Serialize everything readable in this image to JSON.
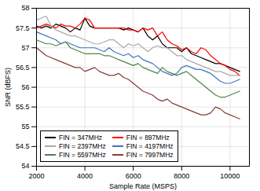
{
  "chart_data": {
    "type": "line",
    "xlabel": "Sample Rate (MSPS)",
    "ylabel": "SNR (dBFS)",
    "xlim": [
      2000,
      10800
    ],
    "ylim": [
      54,
      58
    ],
    "xticks": [
      2000,
      4000,
      6000,
      8000,
      10000
    ],
    "yticks": [
      54,
      54.5,
      55,
      55.5,
      56,
      56.5,
      57,
      57.5,
      58
    ],
    "grid": true,
    "legend": "lower left",
    "x": [
      2000,
      2200,
      2400,
      2600,
      2800,
      3000,
      3200,
      3400,
      3600,
      3800,
      4000,
      4200,
      4400,
      4600,
      4800,
      5000,
      5200,
      5400,
      5600,
      5800,
      6000,
      6200,
      6400,
      6600,
      6800,
      7000,
      7200,
      7400,
      7600,
      7800,
      8000,
      8200,
      8400,
      8600,
      8800,
      9000,
      9200,
      9400,
      9600,
      9800,
      10000,
      10200,
      10400
    ],
    "series": [
      {
        "name": "FIN = 347MHz",
        "color": "#000000",
        "values": [
          57.55,
          57.5,
          57.55,
          57.5,
          57.6,
          57.55,
          57.5,
          57.4,
          57.5,
          57.45,
          57.75,
          57.55,
          57.5,
          57.5,
          57.5,
          57.5,
          57.5,
          57.5,
          57.45,
          57.5,
          57.45,
          57.4,
          57.5,
          57.3,
          57.2,
          57.3,
          57.1,
          57.0,
          57.0,
          57.0,
          56.9,
          57.0,
          56.85,
          56.8,
          56.75,
          56.7,
          56.65,
          56.6,
          56.6,
          56.55,
          56.5,
          56.45,
          56.4
        ]
      },
      {
        "name": "FIN = 897MHz",
        "color": "#ff0000",
        "values": [
          57.5,
          57.55,
          57.6,
          57.55,
          57.5,
          57.6,
          57.55,
          57.55,
          57.5,
          57.6,
          57.75,
          57.7,
          57.5,
          57.5,
          57.5,
          57.5,
          57.5,
          57.5,
          57.5,
          57.45,
          57.45,
          57.4,
          57.5,
          57.45,
          57.5,
          57.3,
          57.4,
          57.2,
          57.1,
          57.05,
          56.95,
          57.0,
          56.9,
          56.85,
          57.0,
          56.95,
          56.8,
          56.7,
          56.6,
          56.55,
          56.45,
          56.4,
          56.3
        ]
      },
      {
        "name": "FIN = 2397MHz",
        "color": "#aaaaaa",
        "values": [
          57.7,
          57.75,
          57.8,
          57.55,
          57.45,
          57.4,
          57.35,
          57.3,
          57.3,
          57.25,
          57.2,
          57.15,
          57.1,
          57.1,
          57.15,
          57.2,
          57.2,
          57.1,
          57.0,
          57.1,
          57.05,
          57.1,
          57.0,
          56.9,
          57.0,
          57.05,
          57.0,
          57.0,
          56.9,
          56.8,
          56.8,
          56.7,
          56.65,
          56.6,
          56.55,
          56.5,
          56.45,
          56.4,
          56.4,
          56.35,
          56.3,
          56.3,
          56.3
        ]
      },
      {
        "name": "FIN = 4197MHz",
        "color": "#4472c4",
        "values": [
          57.4,
          57.35,
          57.3,
          57.25,
          57.2,
          57.1,
          57.15,
          57.1,
          57.05,
          57.0,
          57.0,
          57.0,
          57.0,
          56.95,
          56.9,
          57.0,
          56.9,
          56.85,
          56.8,
          56.85,
          56.75,
          56.8,
          56.7,
          56.65,
          56.6,
          56.5,
          56.4,
          56.35,
          56.3,
          56.35,
          56.5,
          56.55,
          56.5,
          56.45,
          56.45,
          56.4,
          56.35,
          56.25,
          56.15,
          56.1,
          56.1,
          56.15,
          56.2
        ]
      },
      {
        "name": "FIN = 5597MHz",
        "color": "#4e8543",
        "values": [
          57.2,
          57.15,
          57.1,
          57.1,
          57.05,
          57.1,
          57.15,
          57.0,
          56.95,
          56.9,
          56.85,
          56.85,
          56.85,
          56.85,
          56.8,
          56.8,
          56.75,
          56.7,
          56.65,
          56.6,
          56.55,
          56.6,
          56.5,
          56.45,
          56.4,
          56.35,
          56.5,
          56.4,
          56.35,
          56.3,
          56.35,
          56.4,
          56.3,
          56.2,
          56.1,
          56.0,
          55.9,
          55.8,
          55.75,
          55.75,
          55.8,
          55.85,
          55.9
        ]
      },
      {
        "name": "FIN = 7997MHz",
        "color": "#843c38",
        "values": [
          57.0,
          56.9,
          56.8,
          56.75,
          56.7,
          56.65,
          56.6,
          56.55,
          56.5,
          56.5,
          56.4,
          56.45,
          56.5,
          56.4,
          56.35,
          56.3,
          56.3,
          56.35,
          56.25,
          56.2,
          56.1,
          56.0,
          55.9,
          55.85,
          55.8,
          55.7,
          55.65,
          55.7,
          55.6,
          55.55,
          55.5,
          55.45,
          55.4,
          55.35,
          55.3,
          55.3,
          55.35,
          55.5,
          55.45,
          55.35,
          55.3,
          55.25,
          55.2
        ]
      }
    ]
  }
}
